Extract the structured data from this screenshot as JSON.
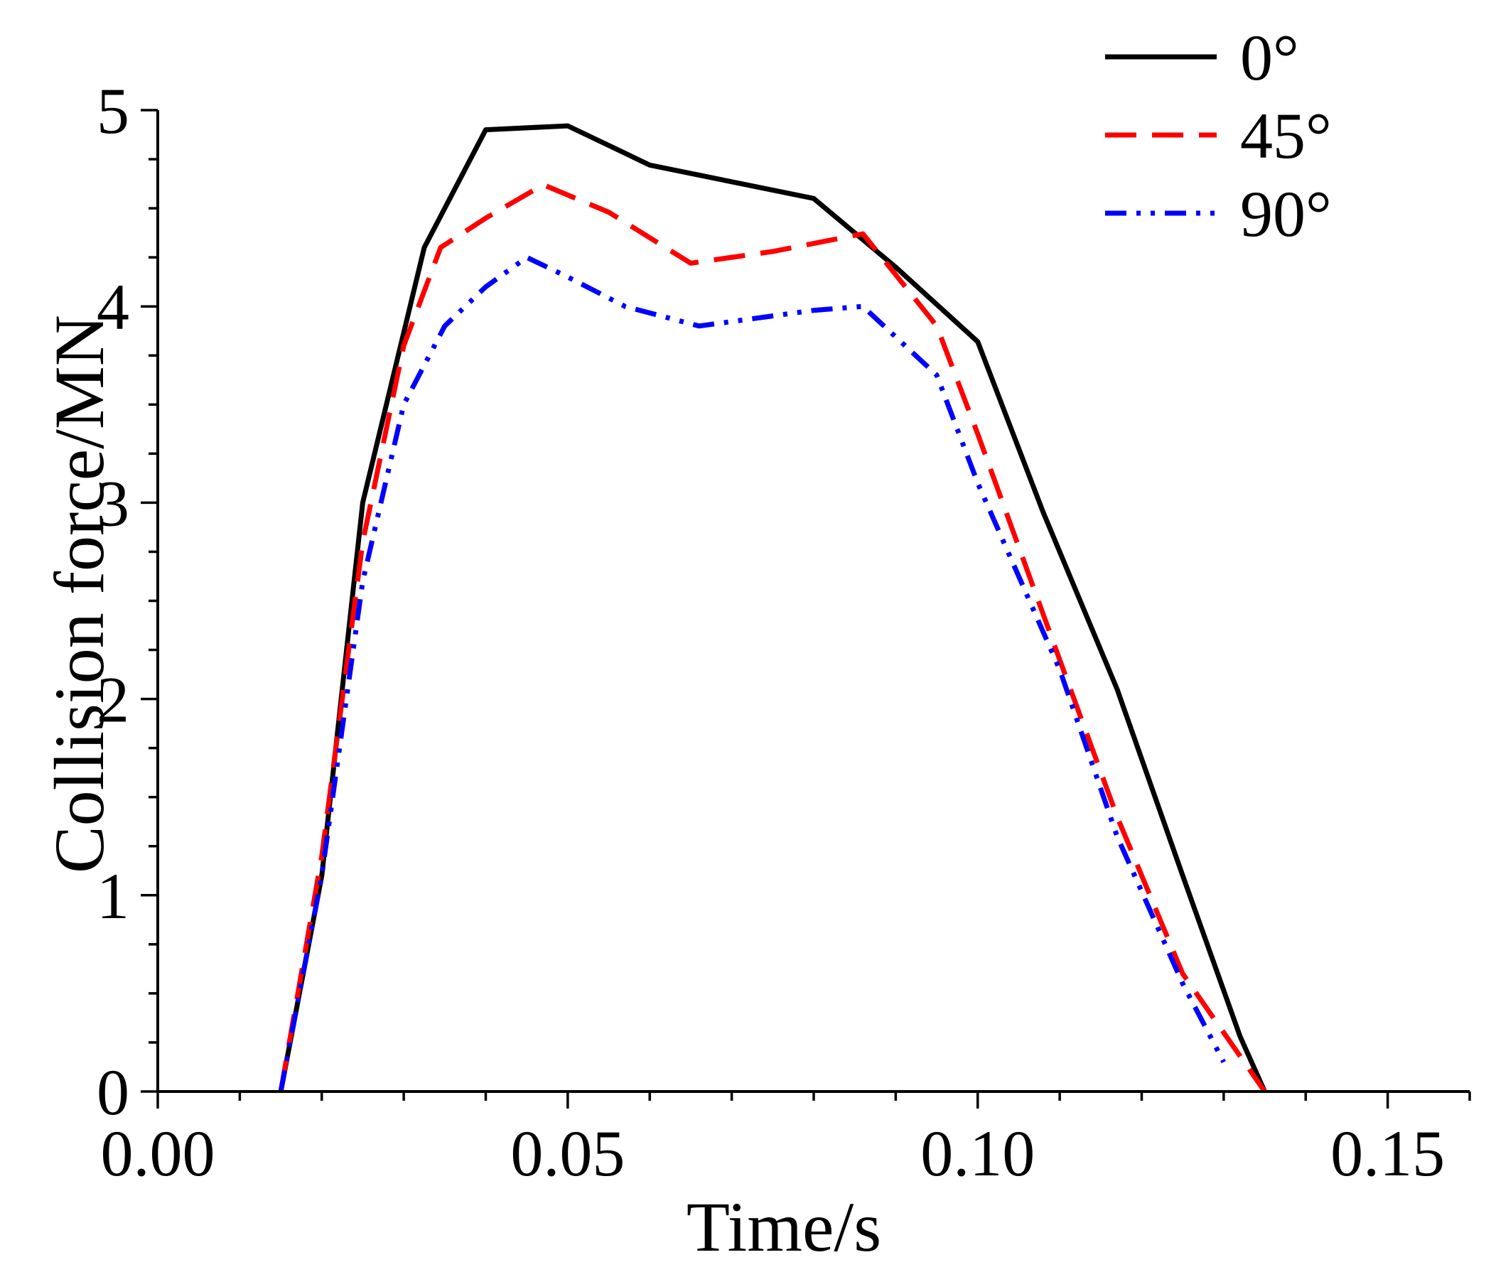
{
  "chart_data": {
    "type": "line",
    "title": "",
    "xlabel": "Time/s",
    "ylabel": "Collision force/MN",
    "xlim": [
      0,
      0.16
    ],
    "ylim": [
      0,
      5
    ],
    "xticks": [
      0.0,
      0.05,
      0.1,
      0.15
    ],
    "xtick_labels": [
      "0.00",
      "0.05",
      "0.10",
      "0.15"
    ],
    "yticks": [
      0,
      1,
      2,
      3,
      4,
      5
    ],
    "ytick_labels": [
      "0",
      "1",
      "2",
      "3",
      "4",
      "5"
    ],
    "legend_position": "top-right",
    "series": [
      {
        "name": "0°",
        "color": "#000000",
        "style": "solid",
        "x": [
          0.015,
          0.02,
          0.025,
          0.0325,
          0.04,
          0.05,
          0.06,
          0.08,
          0.09,
          0.1,
          0.108,
          0.117,
          0.125,
          0.132,
          0.135
        ],
        "y": [
          0,
          1.1,
          3.0,
          4.3,
          4.9,
          4.92,
          4.72,
          4.55,
          4.2,
          3.82,
          2.95,
          2.05,
          1.1,
          0.28,
          0
        ]
      },
      {
        "name": "45°",
        "color": "#ff0000",
        "style": "dashed",
        "x": [
          0.015,
          0.02,
          0.025,
          0.03,
          0.0345,
          0.04,
          0.047,
          0.055,
          0.065,
          0.075,
          0.086,
          0.095,
          0.1,
          0.11,
          0.117,
          0.125,
          0.13,
          0.135
        ],
        "y": [
          0,
          1.2,
          2.8,
          3.8,
          4.3,
          4.45,
          4.62,
          4.48,
          4.22,
          4.28,
          4.37,
          3.9,
          3.35,
          2.2,
          1.4,
          0.6,
          0.3,
          0
        ]
      },
      {
        "name": "90°",
        "color": "#0000ff",
        "style": "dashdotdot",
        "x": [
          0.015,
          0.02,
          0.025,
          0.03,
          0.035,
          0.04,
          0.045,
          0.05,
          0.057,
          0.066,
          0.08,
          0.086,
          0.095,
          0.1,
          0.11,
          0.117,
          0.125,
          0.13
        ],
        "y": [
          0,
          1.1,
          2.6,
          3.5,
          3.9,
          4.1,
          4.25,
          4.15,
          4.0,
          3.9,
          3.98,
          4.0,
          3.65,
          3.1,
          2.15,
          1.3,
          0.55,
          0.15
        ]
      }
    ]
  }
}
